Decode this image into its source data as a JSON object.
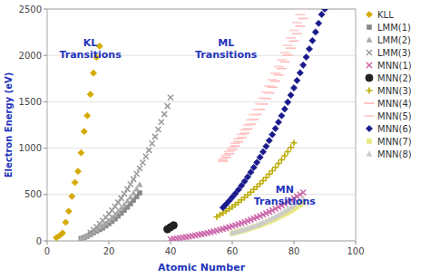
{
  "chart_data": {
    "type": "scatter",
    "xlabel": "Atomic Number",
    "ylabel": "Electron Energy (eV)",
    "xlim": [
      0,
      100
    ],
    "ylim": [
      0,
      2500
    ],
    "xticks": [
      0,
      20,
      40,
      60,
      80,
      100
    ],
    "yticks": [
      0,
      500,
      1000,
      1500,
      2000,
      2500
    ],
    "grid": "y",
    "legend": "right",
    "annotations": [
      {
        "text": "KL\nTransitions",
        "x": 14,
        "y": 2200,
        "color": "#2233bb"
      },
      {
        "text": "ML\nTransitions",
        "x": 58,
        "y": 2200,
        "color": "#2233bb"
      },
      {
        "text": "MN\nTransitions",
        "x": 77,
        "y": 620,
        "color": "#2233bb"
      }
    ],
    "series": [
      {
        "name": "KLL",
        "color": "#d4aa00",
        "marker": "diamond",
        "x": [
          3,
          4,
          5,
          6,
          7,
          8,
          9,
          10,
          11,
          12,
          13,
          14,
          15,
          16,
          17
        ],
        "values": [
          35,
          55,
          85,
          200,
          320,
          480,
          630,
          750,
          950,
          1180,
          1350,
          1580,
          1810,
          1980,
          2100
        ]
      },
      {
        "name": "LMM(1)",
        "color": "#888888",
        "marker": "square",
        "x": [
          11,
          12,
          13,
          14,
          15,
          16,
          17,
          18,
          19,
          20,
          21,
          22,
          23,
          24,
          25,
          26,
          27,
          28,
          29,
          30
        ],
        "values": [
          25,
          35,
          50,
          70,
          88,
          105,
          122,
          140,
          162,
          185,
          210,
          238,
          268,
          298,
          330,
          364,
          400,
          438,
          476,
          516
        ]
      },
      {
        "name": "LMM(2)",
        "color": "#aaaaaa",
        "marker": "triangle",
        "x": [
          11,
          12,
          13,
          14,
          15,
          16,
          17,
          18,
          19,
          20,
          21,
          22,
          23,
          24,
          25,
          26,
          27,
          28,
          29,
          30
        ],
        "values": [
          28,
          42,
          58,
          82,
          102,
          122,
          145,
          165,
          190,
          218,
          248,
          282,
          316,
          352,
          390,
          430,
          472,
          516,
          560,
          607
        ]
      },
      {
        "name": "LMM(3)",
        "color": "#999999",
        "marker": "x",
        "x": [
          14,
          15,
          16,
          17,
          18,
          19,
          20,
          21,
          22,
          23,
          24,
          25,
          26,
          27,
          28,
          29,
          30,
          31,
          32,
          33,
          34,
          35,
          36,
          37,
          38,
          39,
          40
        ],
        "values": [
          90,
          120,
          152,
          185,
          218,
          254,
          292,
          330,
          372,
          414,
          460,
          507,
          558,
          610,
          665,
          722,
          782,
          845,
          910,
          978,
          1050,
          1124,
          1202,
          1282,
          1366,
          1454,
          1546
        ]
      },
      {
        "name": "MNN(1)",
        "color": "#cc66aa",
        "marker": "x",
        "x": [
          40,
          41,
          42,
          43,
          44,
          45,
          46,
          47,
          48,
          49,
          50,
          51,
          52,
          53,
          54,
          55,
          56,
          57,
          58,
          59,
          60,
          61,
          62,
          63,
          64,
          65,
          66,
          67,
          68,
          69,
          70,
          71,
          72,
          73,
          74,
          75,
          76,
          77,
          78,
          79,
          80,
          81,
          82,
          83
        ],
        "values": [
          18,
          22,
          27,
          32,
          37,
          42,
          47,
          53,
          59,
          65,
          72,
          79,
          86,
          94,
          102,
          110,
          119,
          128,
          138,
          148,
          158,
          169,
          180,
          191,
          203,
          215,
          228,
          241,
          255,
          269,
          283,
          298,
          314,
          330,
          347,
          364,
          382,
          400,
          419,
          439,
          459,
          480,
          501,
          523
        ]
      },
      {
        "name": "MNN(2)",
        "color": "#222222",
        "marker": "circle",
        "x": [
          39,
          40,
          41
        ],
        "values": [
          125,
          148,
          168
        ]
      },
      {
        "name": "MNN(3)",
        "color": "#bbaa00",
        "marker": "plus",
        "x": [
          55,
          56,
          57,
          58,
          59,
          60,
          61,
          62,
          63,
          64,
          65,
          66,
          67,
          68,
          69,
          70,
          71,
          72,
          73,
          74,
          75,
          76,
          77,
          78,
          79,
          80
        ],
        "values": [
          260,
          280,
          300,
          322,
          344,
          367,
          391,
          416,
          441,
          468,
          495,
          524,
          553,
          584,
          616,
          649,
          683,
          719,
          756,
          794,
          834,
          875,
          918,
          962,
          1008,
          1056
        ]
      },
      {
        "name": "MNN(4)",
        "color": "#ffbbbb",
        "marker": "hline",
        "x": [
          57,
          58,
          59,
          60,
          61,
          62,
          63,
          64,
          65,
          66,
          67,
          68,
          69,
          70,
          71,
          72,
          73,
          74,
          75,
          76,
          77,
          78,
          79,
          80,
          81,
          82,
          83
        ],
        "values": [
          860,
          900,
          940,
          982,
          1024,
          1068,
          1113,
          1160,
          1208,
          1258,
          1310,
          1363,
          1418,
          1475,
          1534,
          1595,
          1658,
          1723,
          1790,
          1859,
          1930,
          2003,
          2078,
          2155,
          2234,
          2315,
          2398
        ]
      },
      {
        "name": "MNN(5)",
        "color": "#ffcccc",
        "marker": "hline",
        "x": [
          57,
          58,
          59,
          60,
          61,
          62,
          63,
          64,
          65,
          66,
          67,
          68,
          69,
          70,
          71,
          72,
          73,
          74,
          75,
          76,
          77,
          78,
          79,
          80,
          81,
          82,
          83
        ],
        "values": [
          880,
          922,
          964,
          1008,
          1053,
          1100,
          1148,
          1198,
          1250,
          1304,
          1360,
          1418,
          1478,
          1540,
          1604,
          1670,
          1738,
          1808,
          1880,
          1954,
          2030,
          2108,
          2188,
          2270,
          2354,
          2440,
          2500
        ]
      },
      {
        "name": "MNN(6)",
        "color": "#1a1a8c",
        "marker": "diamond",
        "x": [
          57,
          58,
          59,
          60,
          61,
          62,
          63,
          64,
          65,
          66,
          67,
          68,
          69,
          70,
          71,
          72,
          73,
          74,
          75,
          76,
          77,
          78,
          79,
          80,
          81,
          82,
          83,
          84,
          85,
          86,
          87,
          88,
          89,
          90
        ],
        "values": [
          360,
          395,
          432,
          470,
          510,
          552,
          596,
          642,
          690,
          740,
          792,
          846,
          902,
          960,
          1020,
          1082,
          1146,
          1212,
          1280,
          1350,
          1422,
          1496,
          1572,
          1650,
          1730,
          1812,
          1896,
          1982,
          2070,
          2160,
          2252,
          2346,
          2442,
          2500
        ]
      },
      {
        "name": "MNN(7)",
        "color": "#e8e880",
        "marker": "square",
        "x": [
          60,
          61,
          62,
          63,
          64,
          65,
          66,
          67,
          68,
          69,
          70,
          71,
          72,
          73,
          74,
          75,
          76,
          77,
          78,
          79,
          80,
          81,
          82,
          83
        ],
        "values": [
          80,
          88,
          96,
          105,
          114,
          124,
          134,
          145,
          156,
          168,
          181,
          194,
          208,
          222,
          237,
          253,
          270,
          287,
          305,
          324,
          344,
          365,
          387,
          410
        ]
      },
      {
        "name": "MNN(8)",
        "color": "#cccccc",
        "marker": "triangle",
        "x": [
          60,
          61,
          62,
          63,
          64,
          65,
          66,
          67,
          68,
          69,
          70,
          71,
          72,
          73,
          74,
          75,
          76,
          77,
          78,
          79,
          80,
          81,
          82,
          83
        ],
        "values": [
          88,
          96,
          105,
          115,
          125,
          136,
          147,
          159,
          172,
          185,
          199,
          214,
          230,
          246,
          263,
          281,
          300,
          320,
          341,
          363,
          386,
          410,
          435,
          461
        ]
      }
    ]
  }
}
